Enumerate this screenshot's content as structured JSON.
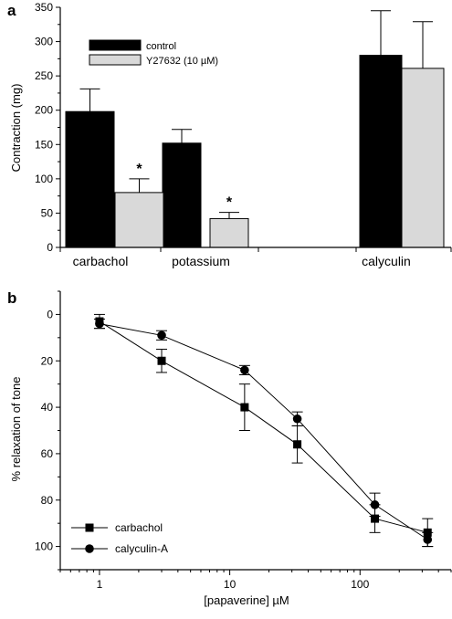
{
  "chart_data": [
    {
      "panel": "a",
      "type": "bar",
      "ylabel": "Contraction (mg)",
      "ylim": [
        0,
        350
      ],
      "yticks": [
        0,
        50,
        100,
        150,
        200,
        250,
        300,
        350
      ],
      "categories": [
        "carbachol",
        "potassium",
        "calyculin"
      ],
      "legend": {
        "placement": "top-left"
      },
      "series": [
        {
          "name": "control",
          "color": "#000000",
          "values": [
            198,
            152,
            280
          ],
          "errors": [
            33,
            20,
            65
          ]
        },
        {
          "name": "Y27632 (10 µM)",
          "color": "#d9d9d9",
          "values": [
            80,
            42,
            261
          ],
          "errors": [
            20,
            9,
            68
          ]
        }
      ],
      "annotations": [
        {
          "text": "*",
          "category": "carbachol",
          "series": "Y27632 (10 µM)"
        },
        {
          "text": "*",
          "category": "potassium",
          "series": "Y27632 (10 µM)"
        }
      ]
    },
    {
      "panel": "b",
      "type": "line",
      "xlabel": "[papaverine] µM",
      "ylabel": "% relaxation of tone",
      "xscale": "log",
      "xlim": [
        0.5,
        500
      ],
      "xticks": [
        1,
        10,
        100
      ],
      "ylim": [
        -10,
        110
      ],
      "yticks": [
        0,
        20,
        40,
        60,
        80,
        100
      ],
      "y_inverted": true,
      "legend": {
        "placement": "bottom-left"
      },
      "series": [
        {
          "name": "carbachol",
          "marker": "square",
          "x": [
            1,
            3,
            13,
            33,
            130,
            330
          ],
          "y": [
            3,
            20,
            40,
            56,
            88,
            94
          ],
          "errors": [
            3,
            5,
            10,
            8,
            6,
            6
          ]
        },
        {
          "name": "calyculin-A",
          "marker": "circle",
          "x": [
            1,
            3,
            13,
            33,
            130,
            330
          ],
          "y": [
            4,
            9,
            24,
            45,
            82,
            97
          ],
          "errors": [
            2,
            2,
            2,
            3,
            5,
            3
          ]
        }
      ]
    }
  ]
}
